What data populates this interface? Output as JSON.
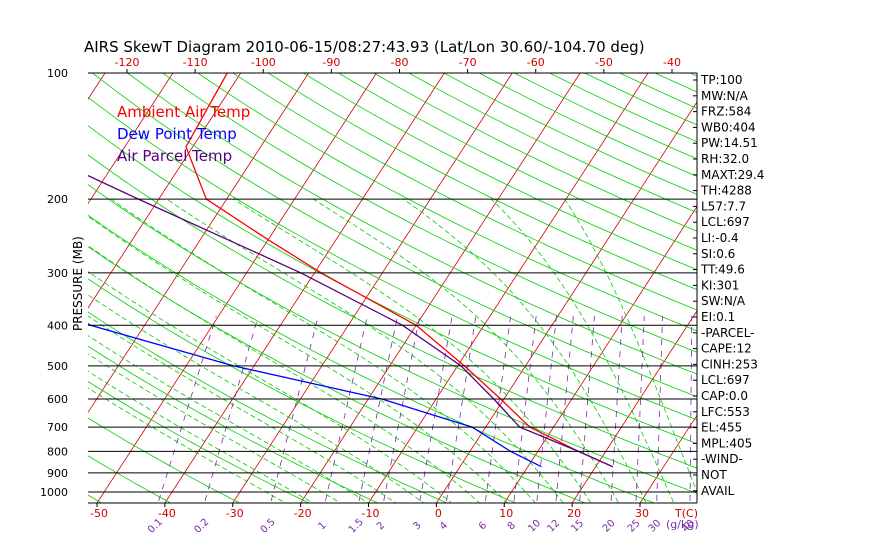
{
  "chart_data": {
    "type": "line",
    "title": "AIRS SkewT Diagram 2010-06-15/08:27:43.93 (Lat/Lon 30.60/-104.70 deg)",
    "ylabel": "PRESSURE (MB)",
    "bottom_unit_label": "T(C)",
    "mixing_unit_label": "(g/kg)",
    "y_axis": {
      "scale": "log",
      "range": [
        1000,
        100
      ]
    },
    "x_axis": {
      "range": [
        -50,
        35
      ]
    },
    "top_axis": {
      "range": [
        -120,
        -40
      ]
    },
    "pressure_ticks": [
      100,
      200,
      300,
      400,
      500,
      600,
      700,
      800,
      900,
      1000
    ],
    "bottom_ticks": [
      -50,
      -40,
      -30,
      -20,
      -10,
      0,
      10,
      20,
      30
    ],
    "top_ticks": [
      -120,
      -110,
      -100,
      -90,
      -80,
      -70,
      -60,
      -50,
      -40
    ],
    "mixing_ratio_labels": [
      "0.1",
      "0.2",
      "0.5",
      "1",
      "1.5",
      "2",
      "3",
      "4",
      "6",
      "8",
      "10",
      "12",
      "15",
      "20",
      "25",
      "30",
      "40"
    ],
    "legend": [
      "Ambient Air Temp",
      "Dew Point Temp",
      "Air Parcel Temp"
    ],
    "colors": {
      "temp": "#ff0000",
      "dew": "#0000ff",
      "parcel": "#5a0080",
      "isotherm": "#d00000",
      "dry_adiabat": "#00d000",
      "moist_adiabat": "#00cc00",
      "mixing": "#7a2aa8",
      "axis": "#000000",
      "tick_label": "#d00000"
    },
    "series": [
      {
        "name": "Ambient Air Temp",
        "points": [
          [
            100,
            -72.0
          ],
          [
            150,
            -71.0
          ],
          [
            200,
            -63.0
          ],
          [
            250,
            -50.0
          ],
          [
            300,
            -39.0
          ],
          [
            400,
            -20.0
          ],
          [
            500,
            -9.0
          ],
          [
            600,
            -0.5
          ],
          [
            700,
            6.5
          ],
          [
            800,
            16.0
          ],
          [
            870,
            22.5
          ]
        ]
      },
      {
        "name": "Dew Point Temp",
        "points": [
          [
            100,
            -115.0
          ],
          [
            150,
            -100.0
          ],
          [
            250,
            -88.0
          ],
          [
            300,
            -85.0
          ],
          [
            400,
            -68.0
          ],
          [
            500,
            -43.0
          ],
          [
            600,
            -18.0
          ],
          [
            700,
            -2.0
          ],
          [
            800,
            6.0
          ],
          [
            870,
            12.0
          ]
        ]
      },
      {
        "name": "Air Parcel Temp",
        "points": [
          [
            100,
            -125.0
          ],
          [
            200,
            -73.0
          ],
          [
            300,
            -42.0
          ],
          [
            400,
            -22.0
          ],
          [
            500,
            -9.5
          ],
          [
            600,
            -1.5
          ],
          [
            700,
            5.0
          ],
          [
            800,
            16.0
          ],
          [
            870,
            22.5
          ]
        ]
      }
    ],
    "indices": [
      "TP:100",
      "MW:N/A",
      "FRZ:584",
      "WB0:404",
      "PW:14.51",
      "RH:32.0",
      "MAXT:29.4",
      "TH:4288",
      "L57:7.7",
      "LCL:697",
      "LI:-0.4",
      "SI:0.6",
      "TT:49.6",
      "KI:301",
      "SW:N/A",
      "EI:0.1",
      "-PARCEL-",
      "CAPE:12",
      "CINH:253",
      "LCL:697",
      "CAP:0.0",
      "LFC:553",
      "EL:455",
      "MPL:405",
      "-WIND-",
      "NOT",
      "AVAIL"
    ]
  }
}
